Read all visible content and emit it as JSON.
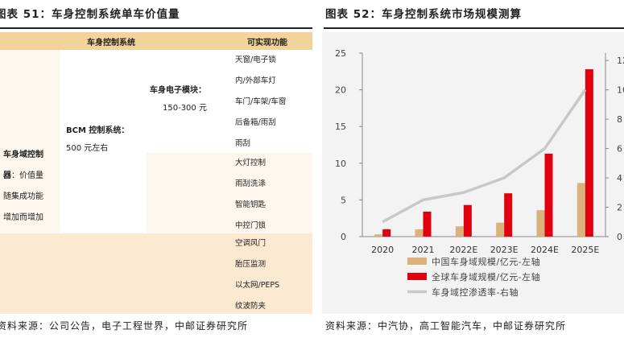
{
  "left": {
    "title": "图表 51：车身控制系统单车价值量",
    "header": {
      "system": "车身控制系统",
      "function": "可实现功能"
    },
    "domain_label": [
      "车身域控制",
      "器：价值量",
      "随集成功能",
      "增加而增加"
    ],
    "bcm_label": "BCM 控制系统：",
    "bcm_value": "500 元左右",
    "module_label": "车身电子模块：",
    "module_value": "150-300 元",
    "functions_group1": [
      "天窗/电子锁",
      "内/外部车灯",
      "车门/车架/车窗",
      "后备箱/雨刮",
      "雨刮"
    ],
    "functions_group2": [
      "大灯控制",
      "雨刮洗涤",
      "智能钥匙",
      "中控门锁"
    ],
    "functions_group3": [
      "空调风门",
      "胎压监测",
      "以太网/PEPS",
      "纹波防夹"
    ],
    "source": "资料来源：公司公告，电子工程世界，中邮证券研究所"
  },
  "right": {
    "title": "图表 52：车身控制系统市场规模测算",
    "source": "资料来源：中汽协，高工智能汽车，中邮证券研究所"
  },
  "chart_data": {
    "type": "bar",
    "title": "",
    "categories": [
      "2020",
      "2021",
      "2022E",
      "2023E",
      "2024E",
      "2025E"
    ],
    "series": [
      {
        "name": "中国车身域规模/亿元-左轴",
        "type": "bar",
        "axis": "left",
        "color": "#d9b27c",
        "values": [
          0.3,
          1.0,
          1.4,
          1.9,
          3.6,
          7.3
        ]
      },
      {
        "name": "全球车身域规模/亿元-左轴",
        "type": "bar",
        "axis": "left",
        "color": "#e00010",
        "values": [
          1.0,
          3.4,
          4.3,
          5.9,
          11.3,
          22.8
        ]
      },
      {
        "name": "车身域控渗透率-右轴",
        "type": "line",
        "axis": "right",
        "color": "#c8c8c8",
        "values": [
          1.0,
          2.5,
          3.0,
          4.0,
          6.0,
          10.0
        ]
      }
    ],
    "y_left": {
      "ylim": [
        0,
        25
      ],
      "ticks": [
        "0",
        "5",
        "10",
        "15",
        "20",
        "25"
      ]
    },
    "y_right": {
      "ylim": [
        0,
        12.5
      ],
      "ticks": [
        "0",
        "2",
        "4",
        "6",
        "8",
        "10",
        "12"
      ]
    },
    "grid": false,
    "legend": "bottom",
    "colors": {
      "background": "#f3f3f3"
    }
  }
}
